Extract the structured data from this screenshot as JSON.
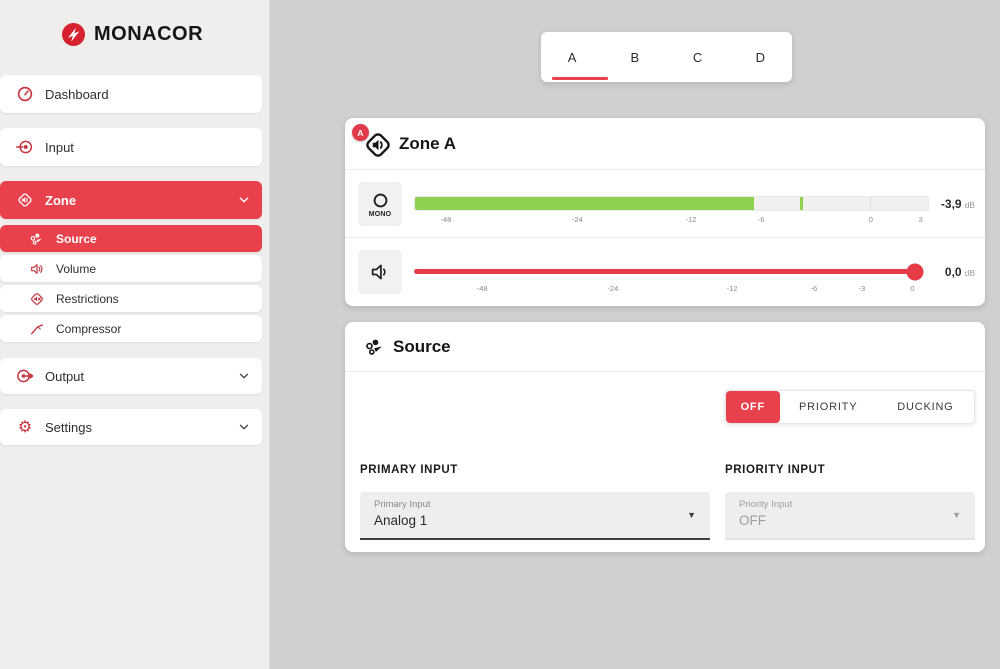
{
  "brand": {
    "name": "MONACOR"
  },
  "sidebar": {
    "dashboard": "Dashboard",
    "input": "Input",
    "zone": "Zone",
    "source": "Source",
    "volume": "Volume",
    "restrictions": "Restrictions",
    "compressor": "Compressor",
    "output": "Output",
    "settings": "Settings"
  },
  "tabs": {
    "a": "A",
    "b": "B",
    "c": "C",
    "d": "D",
    "active": "A"
  },
  "zone_card": {
    "badge": "A",
    "title": "Zone A",
    "meter": {
      "button": "MONO",
      "ticks": [
        "-48",
        "-24",
        "-12",
        "-6",
        "0",
        "3"
      ],
      "value": "-3,9",
      "unit": "dB",
      "fill_percent": 66,
      "peak_percent": 75
    },
    "volume": {
      "ticks": [
        "-48",
        "-24",
        "-12",
        "-6",
        "-3",
        "0"
      ],
      "value": "0,0",
      "unit": "dB",
      "position_percent": 100
    }
  },
  "source_card": {
    "title": "Source",
    "modes": {
      "off": "OFF",
      "priority": "PRIORITY",
      "ducking": "DUCKING",
      "active": "OFF"
    },
    "primary_input": {
      "heading": "PRIMARY INPUT",
      "label": "Primary Input",
      "value": "Analog 1"
    },
    "priority_input": {
      "heading": "PRIORITY INPUT",
      "label": "Priority Input",
      "value": "OFF"
    }
  },
  "colors": {
    "accent_red": "#e8414c",
    "meter_green": "#8ed04f",
    "logo_red": "#d6212e"
  }
}
